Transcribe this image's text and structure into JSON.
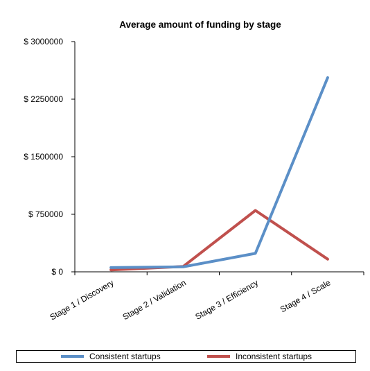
{
  "chart_data": {
    "type": "line",
    "title": "Average amount of funding by stage",
    "xlabel": "",
    "ylabel": "",
    "categories": [
      "Stage 1 / Discovery",
      "Stage 2 / Validation",
      "Stage 3 / Efficiency",
      "Stage 4 / Scale"
    ],
    "ylim": [
      0,
      3000000
    ],
    "yticks": [
      0,
      750000,
      1500000,
      2250000,
      3000000
    ],
    "ytick_labels": [
      "$ 0",
      "$ 750000",
      "$ 1500000",
      "$ 2250000",
      "$ 3000000"
    ],
    "grid": false,
    "legend_position": "bottom",
    "series": [
      {
        "name": "Consistent startups",
        "color": "#5b8fc7",
        "values": [
          55000,
          65000,
          240000,
          2530000
        ]
      },
      {
        "name": "Inconsistent startups",
        "color": "#c0504d",
        "values": [
          25000,
          70000,
          800000,
          165000
        ]
      }
    ]
  }
}
